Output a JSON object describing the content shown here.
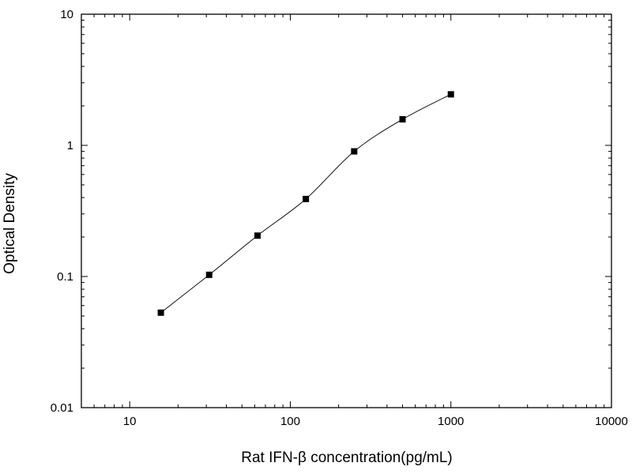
{
  "chart_data": {
    "type": "scatter",
    "title": "",
    "xlabel": "Rat IFN-β  concentration(pg/mL)",
    "ylabel": "Optical Density",
    "xscale": "log",
    "yscale": "log",
    "xlim": [
      5,
      10000
    ],
    "ylim": [
      0.01,
      10
    ],
    "x_ticks": [
      10,
      100,
      1000,
      10000
    ],
    "x_tick_labels": [
      "10",
      "100",
      "1000",
      "10000"
    ],
    "y_ticks": [
      0.01,
      0.1,
      1,
      10
    ],
    "y_tick_labels": [
      "0.01",
      "0.1",
      "1",
      "10"
    ],
    "grid": false,
    "legend": "none",
    "marker": "square",
    "fit_curve": true,
    "series": [
      {
        "x": [
          15.63,
          31.25,
          62.5,
          125,
          250,
          500,
          1000
        ],
        "y": [
          0.053,
          0.103,
          0.205,
          0.39,
          0.9,
          1.58,
          2.45
        ]
      }
    ],
    "colors": {
      "marker": "#000000",
      "line": "#000000",
      "axis": "#000000"
    }
  }
}
